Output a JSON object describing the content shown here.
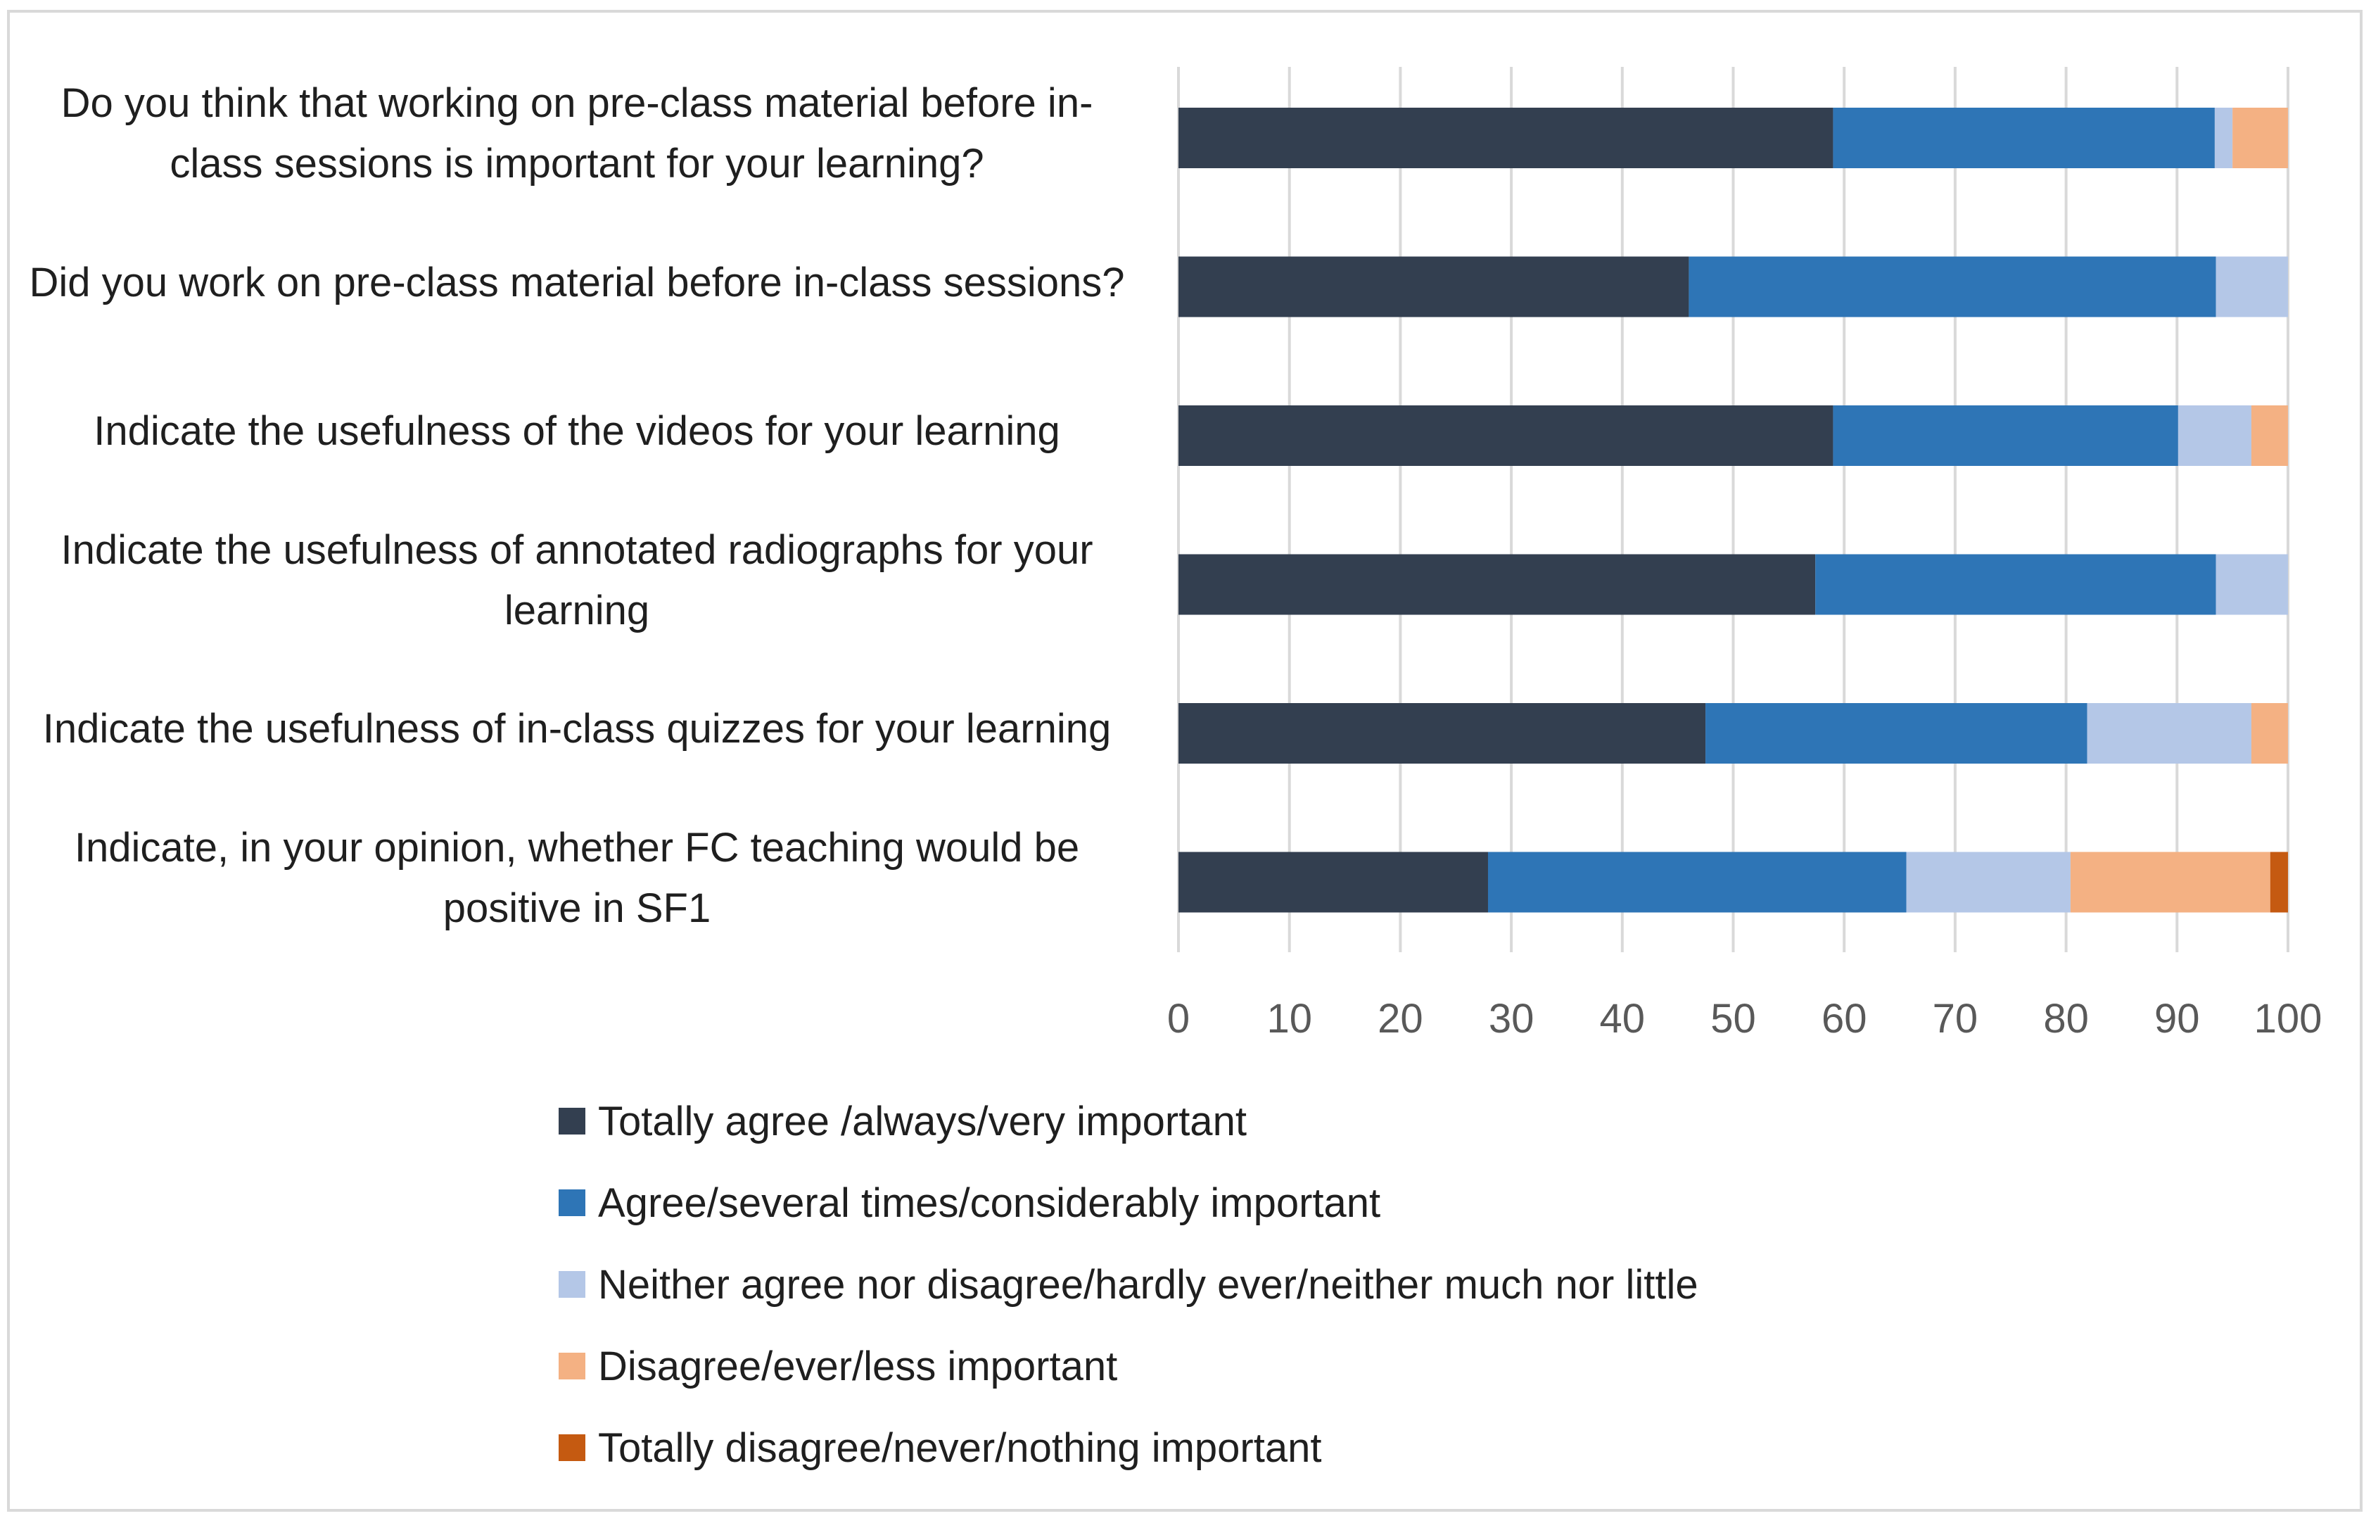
{
  "chart_data": {
    "type": "bar",
    "orientation": "horizontal",
    "stacked": true,
    "categories": [
      "Do you think that working on pre-class material before in-class sessions is important for your learning?",
      "Did you work on pre-class material before in-class sessions?",
      "Indicate the usefulness of the videos for your learning",
      "Indicate the usefulness of annotated radiographs for your learning",
      "Indicate the usefulness of in-class quizzes for your learning",
      "Indicate, in your opinion, whether FC teaching would be positive in SF1"
    ],
    "series": [
      {
        "name": "Totally agree /always/very important",
        "color": "#333f50",
        "values": [
          59,
          46,
          59,
          57.4,
          47.5,
          27.9
        ]
      },
      {
        "name": "Agree/several times/considerably important",
        "color": "#2e75b6",
        "values": [
          34.4,
          47.5,
          31.1,
          36.1,
          34.4,
          37.7
        ]
      },
      {
        "name": "Neither agree nor disagree/hardly ever/neither much nor little",
        "color": "#b4c7e7",
        "values": [
          1.6,
          6.5,
          6.6,
          6.5,
          14.8,
          14.8
        ]
      },
      {
        "name": "Disagree/ever/less important",
        "color": "#f4b183",
        "values": [
          5,
          0,
          3.3,
          0,
          3.3,
          18
        ]
      },
      {
        "name": "Totally disagree/never/nothing important",
        "color": "#c55a11",
        "values": [
          0,
          0,
          0,
          0,
          0,
          1.6
        ]
      }
    ],
    "xlim": [
      0,
      100
    ],
    "xticks": [
      "0",
      "10",
      "20",
      "30",
      "40",
      "50",
      "60",
      "70",
      "80",
      "90",
      "100"
    ],
    "grid": true,
    "legend_position": "bottom"
  }
}
